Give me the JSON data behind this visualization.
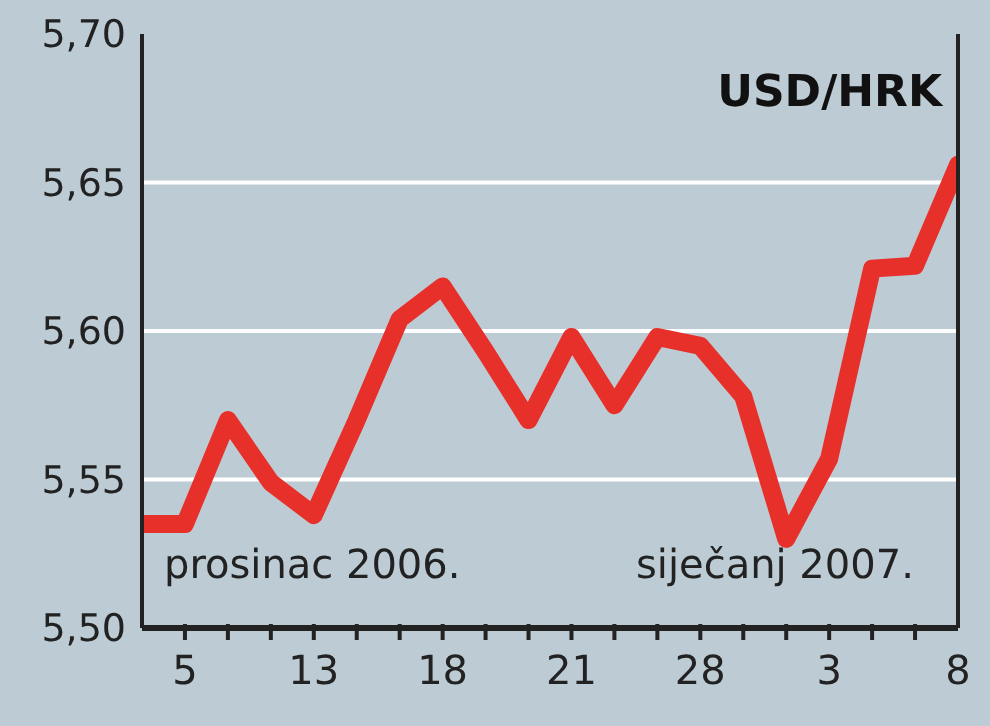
{
  "chart_data": {
    "type": "line",
    "title": "USD/HRK",
    "categories": [
      null,
      "5",
      null,
      null,
      "13",
      null,
      null,
      "18",
      null,
      null,
      "21",
      null,
      null,
      "28",
      null,
      null,
      "3",
      null,
      null,
      "8"
    ],
    "series": [
      {
        "color": "#e8302a",
        "values": [
          5.535,
          5.535,
          5.57,
          5.549,
          5.538,
          5.57,
          5.604,
          5.615,
          5.593,
          5.57,
          5.598,
          5.575,
          5.598,
          5.595,
          5.578,
          5.53,
          5.557,
          5.621,
          5.622,
          5.656
        ]
      }
    ],
    "ylim": [
      5.5,
      5.7
    ],
    "yticks": [
      {
        "value": 5.5,
        "label": "5,50"
      },
      {
        "value": 5.55,
        "label": "5,55"
      },
      {
        "value": 5.6,
        "label": "5,60"
      },
      {
        "value": 5.65,
        "label": "5,65"
      },
      {
        "value": 5.7,
        "label": "5,70"
      }
    ],
    "annotations": [
      "prosinac 2006.",
      "siječanj 2007."
    ],
    "grid": "y",
    "legend": false,
    "marker": "none",
    "line_style": "solid"
  }
}
